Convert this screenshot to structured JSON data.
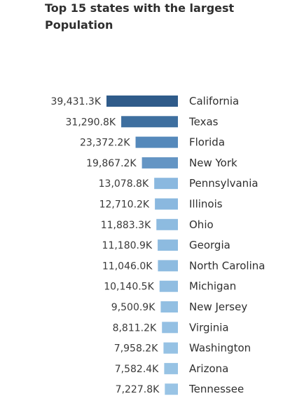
{
  "chart_data": {
    "type": "bar",
    "orientation": "horizontal",
    "title": "Top 15 states with the largest Population",
    "categories": [
      "California",
      "Texas",
      "Florida",
      "New York",
      "Pennsylvania",
      "Illinois",
      "Ohio",
      "Georgia",
      "North Carolina",
      "Michigan",
      "New Jersey",
      "Virginia",
      "Washington",
      "Arizona",
      "Tennessee"
    ],
    "values": [
      39431.3,
      31290.8,
      23372.2,
      19867.2,
      13078.8,
      12710.2,
      11883.3,
      11180.9,
      11046.0,
      10140.5,
      9500.9,
      8811.2,
      7958.2,
      7582.4,
      7227.8
    ],
    "value_labels": [
      "39,431.3K",
      "31,290.8K",
      "23,372.2K",
      "19,867.2K",
      "13,078.8K",
      "12,710.2K",
      "11,883.3K",
      "11,180.9K",
      "11,046.0K",
      "10,140.5K",
      "9,500.9K",
      "8,811.2K",
      "7,958.2K",
      "7,582.4K",
      "7,227.8K"
    ],
    "bar_colors": [
      "#2f5b8a",
      "#3e6f9f",
      "#5589bb",
      "#6495c4",
      "#8ab8df",
      "#8ab8df",
      "#8dbbe0",
      "#8dbbe0",
      "#8dbbe0",
      "#90bde1",
      "#92bfe2",
      "#94c0e3",
      "#96c2e4",
      "#97c3e4",
      "#99c4e5"
    ],
    "xlabel": "",
    "ylabel": "",
    "legend": "none",
    "grid": false
  }
}
